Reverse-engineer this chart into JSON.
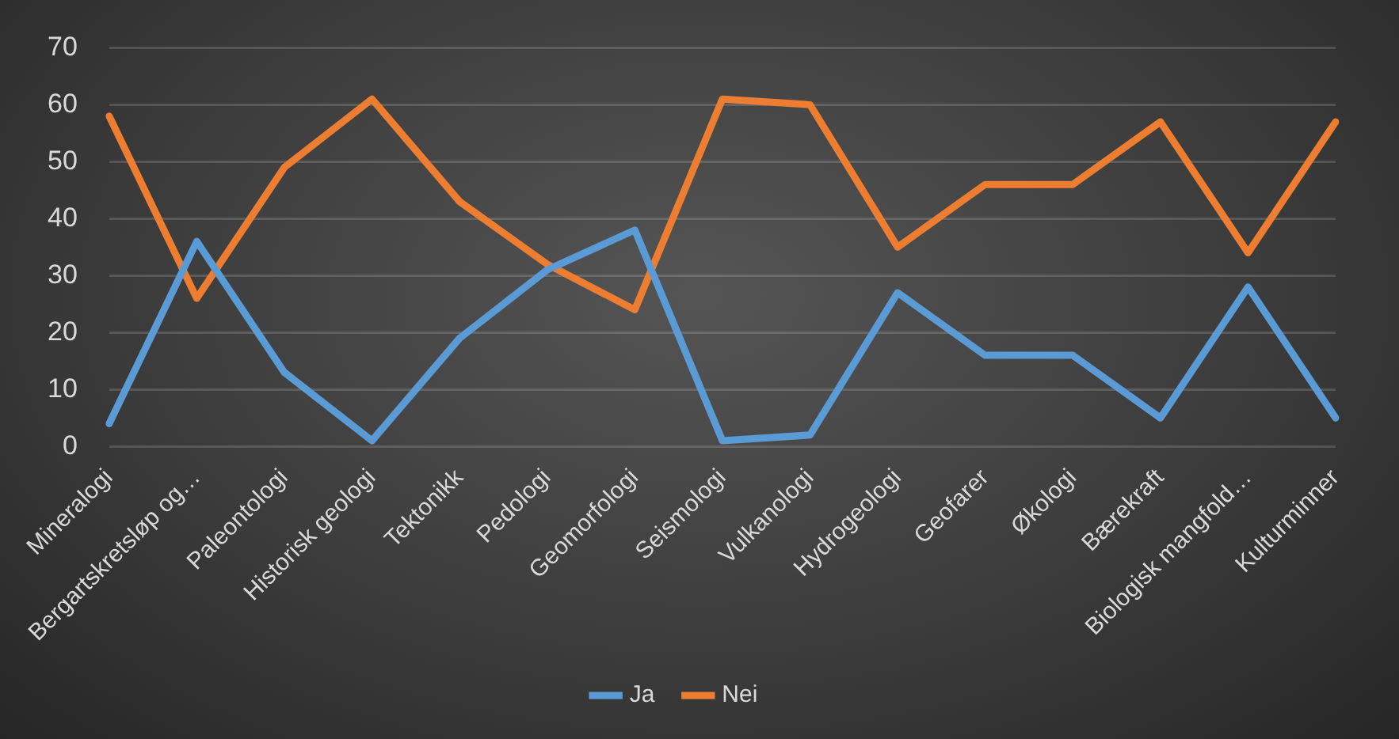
{
  "chart_data": {
    "type": "line",
    "categories": [
      "Mineralogi",
      "Bergartskretsløp og…",
      "Paleontologi",
      "Historisk geologi",
      "Tektonikk",
      "Pedologi",
      "Geomorfologi",
      "Seismologi",
      "Vulkanologi",
      "Hydrogeologi",
      "Geofarer",
      "Økologi",
      "Bærekraft",
      "Biologisk mangfold…",
      "Kulturminner"
    ],
    "series": [
      {
        "name": "Ja",
        "color": "#5b9bd5",
        "values": [
          4,
          36,
          13,
          1,
          19,
          31,
          38,
          1,
          2,
          27,
          16,
          16,
          5,
          28,
          5
        ]
      },
      {
        "name": "Nei",
        "color": "#ed7d31",
        "values": [
          58,
          26,
          49,
          61,
          43,
          32,
          24,
          61,
          60,
          35,
          46,
          46,
          57,
          34,
          57
        ]
      }
    ],
    "ylim": [
      0,
      70
    ],
    "yticks": [
      0,
      10,
      20,
      30,
      40,
      50,
      60,
      70
    ],
    "grid": "y",
    "legend": "bottom",
    "marker": "none",
    "line_style": "solid"
  }
}
